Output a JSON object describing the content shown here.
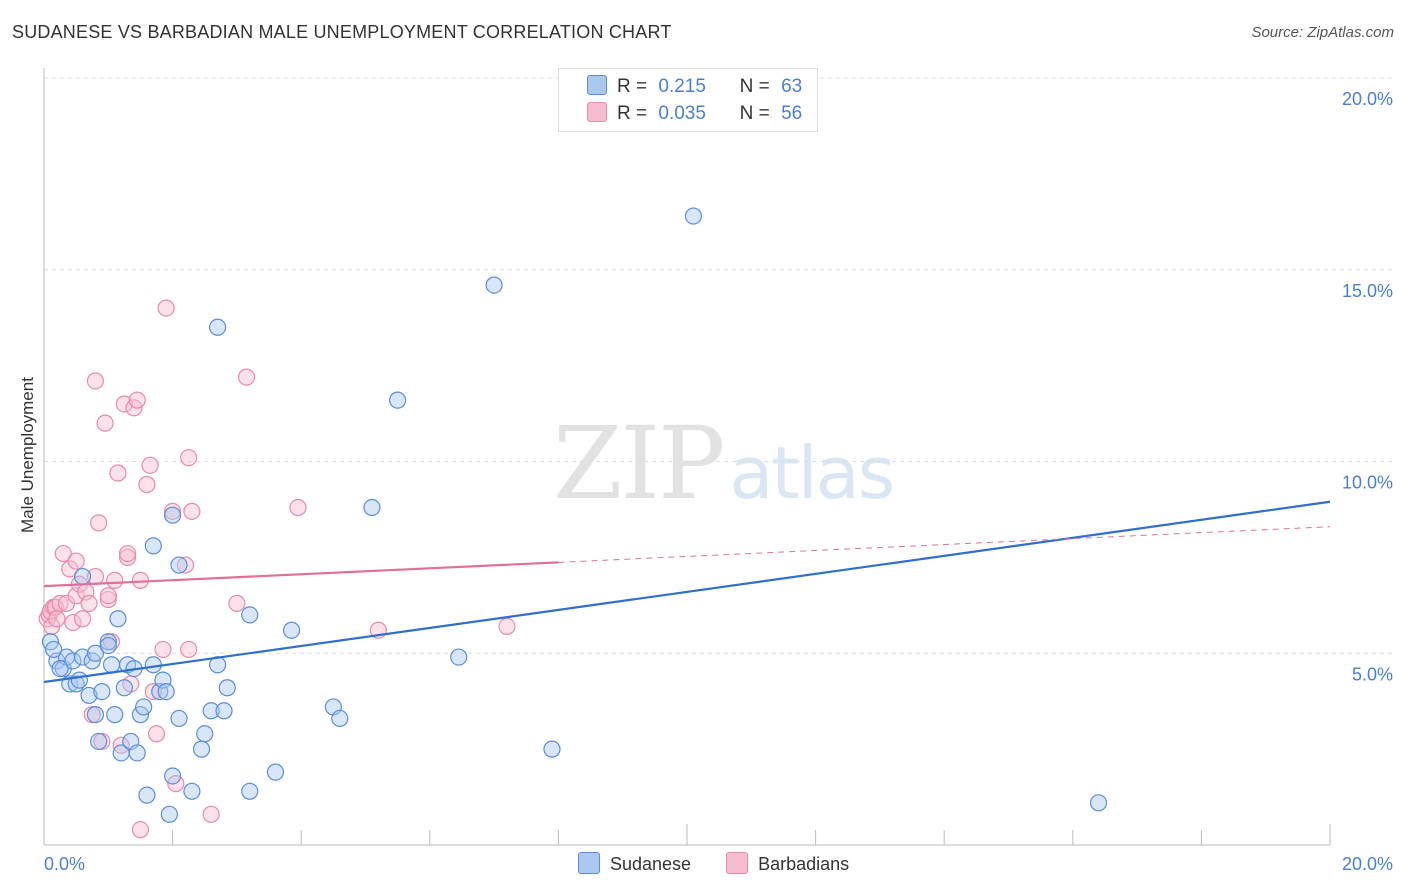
{
  "title": "SUDANESE VS BARBADIAN MALE UNEMPLOYMENT CORRELATION CHART",
  "source": "Source: ZipAtlas.com",
  "watermark": {
    "zip": "ZIP",
    "atlas": "atlas"
  },
  "colors": {
    "blue_fill": "#aac8ef",
    "blue_stroke": "#5a8ed6",
    "blue_line": "#2f6fce",
    "pink_fill": "#f6bcd0",
    "pink_stroke": "#e88aab",
    "pink_line": "#e0709a",
    "tick_text": "#4a7fd0",
    "grid": "#dddddd"
  },
  "legend": {
    "rows": [
      {
        "r_label": "R =",
        "r_value": "0.215",
        "n_label": "N =",
        "n_value": "63",
        "series": "Sudanese"
      },
      {
        "r_label": "R =",
        "r_value": "0.035",
        "n_label": "N =",
        "n_value": "56",
        "series": "Barbadians"
      }
    ]
  },
  "bottom_legend": {
    "items": [
      "Sudanese",
      "Barbadians"
    ]
  },
  "chart_data": {
    "type": "scatter",
    "title": "SUDANESE VS BARBADIAN MALE UNEMPLOYMENT CORRELATION CHART",
    "xlabel": "",
    "ylabel": "Male Unemployment",
    "xlim": [
      0,
      20
    ],
    "ylim": [
      0,
      20
    ],
    "x_tick_labels": [
      "0.0%",
      "20.0%"
    ],
    "y_ticks": [
      5,
      10,
      15,
      20
    ],
    "y_tick_labels": [
      "5.0%",
      "10.0%",
      "15.0%",
      "20.0%"
    ],
    "legend_position": "top-center",
    "series": [
      {
        "name": "Sudanese",
        "r": 0.215,
        "n": 63,
        "trend": {
          "x": [
            0,
            20
          ],
          "y": [
            4.25,
            8.95
          ],
          "dashed_from": null
        },
        "points": [
          [
            0.1,
            5.3
          ],
          [
            0.2,
            4.8
          ],
          [
            0.3,
            4.6
          ],
          [
            0.35,
            4.9
          ],
          [
            0.4,
            4.2
          ],
          [
            0.45,
            4.8
          ],
          [
            0.5,
            4.2
          ],
          [
            0.6,
            4.9
          ],
          [
            0.6,
            7.0
          ],
          [
            0.7,
            3.9
          ],
          [
            0.75,
            4.8
          ],
          [
            0.8,
            5.0
          ],
          [
            0.8,
            3.4
          ],
          [
            0.85,
            2.7
          ],
          [
            0.9,
            4.0
          ],
          [
            1.0,
            5.3
          ],
          [
            1.0,
            5.2
          ],
          [
            1.05,
            4.7
          ],
          [
            1.1,
            3.4
          ],
          [
            1.15,
            5.9
          ],
          [
            1.2,
            2.4
          ],
          [
            1.25,
            4.1
          ],
          [
            1.3,
            4.7
          ],
          [
            1.35,
            2.7
          ],
          [
            1.4,
            4.6
          ],
          [
            1.45,
            2.4
          ],
          [
            1.5,
            3.4
          ],
          [
            1.55,
            3.6
          ],
          [
            1.6,
            1.3
          ],
          [
            1.7,
            7.8
          ],
          [
            1.7,
            4.7
          ],
          [
            1.8,
            4.0
          ],
          [
            1.85,
            4.3
          ],
          [
            1.9,
            4.0
          ],
          [
            1.95,
            0.8
          ],
          [
            2.0,
            1.8
          ],
          [
            2.0,
            8.6
          ],
          [
            2.1,
            3.3
          ],
          [
            2.1,
            7.3
          ],
          [
            2.3,
            1.4
          ],
          [
            2.45,
            2.5
          ],
          [
            2.5,
            2.9
          ],
          [
            2.6,
            3.5
          ],
          [
            2.7,
            13.5
          ],
          [
            2.7,
            4.7
          ],
          [
            2.8,
            3.5
          ],
          [
            2.85,
            4.1
          ],
          [
            3.2,
            1.4
          ],
          [
            3.2,
            6.0
          ],
          [
            3.6,
            1.9
          ],
          [
            3.85,
            5.6
          ],
          [
            4.5,
            3.6
          ],
          [
            4.6,
            3.3
          ],
          [
            5.1,
            8.8
          ],
          [
            5.5,
            11.6
          ],
          [
            6.45,
            4.9
          ],
          [
            7.0,
            14.6
          ],
          [
            7.9,
            2.5
          ],
          [
            10.1,
            16.4
          ],
          [
            16.4,
            1.1
          ],
          [
            0.15,
            5.1
          ],
          [
            0.25,
            4.6
          ],
          [
            0.55,
            4.3
          ]
        ]
      },
      {
        "name": "Barbadians",
        "r": 0.035,
        "n": 56,
        "trend": {
          "x": [
            0,
            20
          ],
          "y": [
            6.75,
            8.3
          ],
          "dashed_from": 8.0
        },
        "points": [
          [
            0.05,
            5.9
          ],
          [
            0.08,
            6.0
          ],
          [
            0.1,
            6.1
          ],
          [
            0.12,
            5.7
          ],
          [
            0.15,
            6.2
          ],
          [
            0.18,
            6.2
          ],
          [
            0.2,
            5.9
          ],
          [
            0.25,
            6.3
          ],
          [
            0.3,
            7.6
          ],
          [
            0.35,
            6.3
          ],
          [
            0.4,
            7.2
          ],
          [
            0.45,
            5.8
          ],
          [
            0.5,
            6.5
          ],
          [
            0.5,
            7.4
          ],
          [
            0.55,
            6.8
          ],
          [
            0.6,
            5.9
          ],
          [
            0.65,
            6.6
          ],
          [
            0.7,
            6.3
          ],
          [
            0.75,
            3.4
          ],
          [
            0.8,
            7.0
          ],
          [
            0.8,
            12.1
          ],
          [
            0.85,
            8.4
          ],
          [
            0.9,
            2.7
          ],
          [
            0.95,
            11.0
          ],
          [
            1.0,
            6.4
          ],
          [
            1.0,
            6.5
          ],
          [
            1.05,
            5.3
          ],
          [
            1.1,
            6.9
          ],
          [
            1.15,
            9.7
          ],
          [
            1.2,
            2.6
          ],
          [
            1.25,
            11.5
          ],
          [
            1.3,
            7.5
          ],
          [
            1.3,
            7.6
          ],
          [
            1.35,
            4.2
          ],
          [
            1.4,
            11.4
          ],
          [
            1.45,
            11.6
          ],
          [
            1.5,
            6.9
          ],
          [
            1.5,
            0.4
          ],
          [
            1.6,
            9.4
          ],
          [
            1.65,
            9.9
          ],
          [
            1.7,
            4.0
          ],
          [
            1.75,
            2.9
          ],
          [
            1.85,
            5.1
          ],
          [
            1.9,
            14.0
          ],
          [
            2.0,
            8.7
          ],
          [
            2.05,
            1.6
          ],
          [
            2.2,
            7.3
          ],
          [
            2.25,
            10.1
          ],
          [
            2.3,
            8.7
          ],
          [
            2.25,
            5.1
          ],
          [
            2.6,
            0.8
          ],
          [
            3.0,
            6.3
          ],
          [
            3.15,
            12.2
          ],
          [
            3.95,
            8.8
          ],
          [
            5.2,
            5.6
          ],
          [
            7.2,
            5.7
          ]
        ]
      }
    ]
  }
}
